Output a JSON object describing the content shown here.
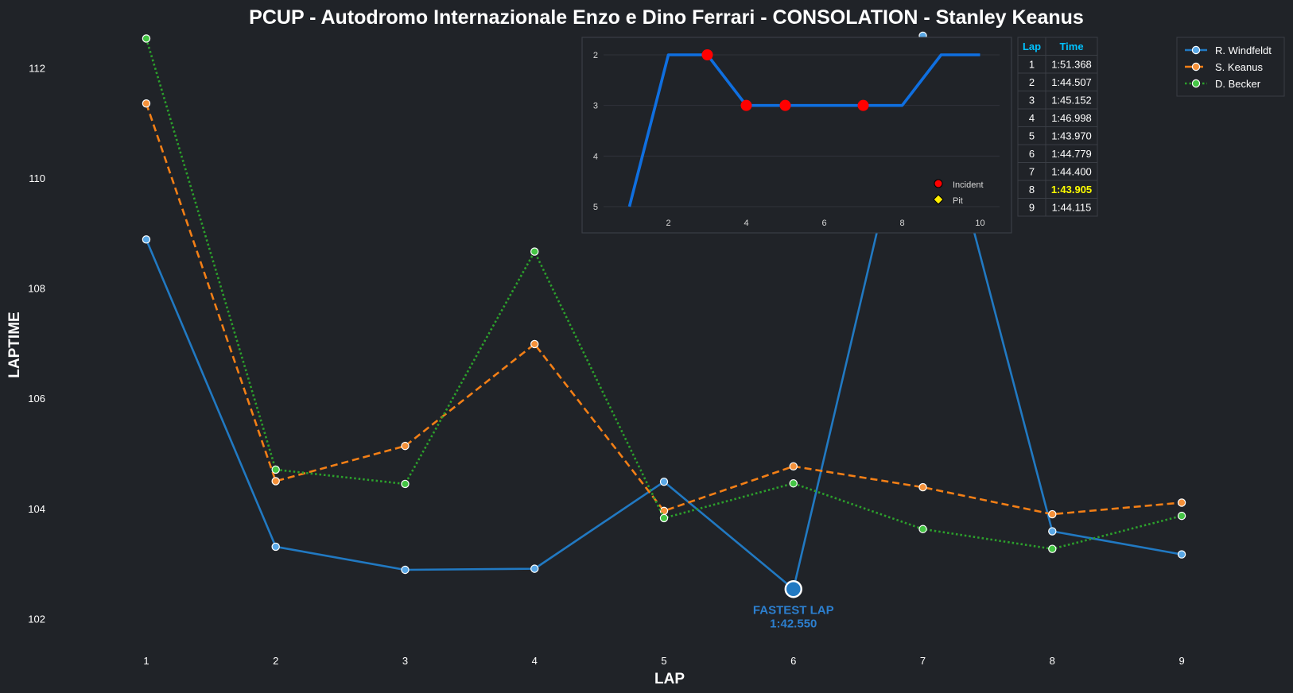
{
  "chart_data": [
    {
      "type": "line",
      "title": "PCUP - Autodromo Internazionale Enzo e Dino Ferrari - CONSOLATION - Stanley Keanus",
      "xlabel": "LAP",
      "ylabel": "LAPTIME",
      "x": [
        1,
        2,
        3,
        4,
        5,
        6,
        7,
        8,
        9
      ],
      "xlim": [
        0.3,
        9.7
      ],
      "ylim": [
        101.5,
        112.6
      ],
      "yticks": [
        102,
        104,
        106,
        108,
        110,
        112
      ],
      "grid": false,
      "legend_position": "top-right",
      "series": [
        {
          "name": "R. Windfeldt",
          "color": "#2179c2",
          "marker_fill": "#5aa8e6",
          "dash": "solid",
          "values": [
            108.9,
            103.32,
            102.9,
            102.92,
            104.5,
            102.55,
            112.6,
            103.6,
            103.18
          ]
        },
        {
          "name": "S. Keanus",
          "color": "#f37f16",
          "marker_fill": "#f5913a",
          "dash": "dashed",
          "values": [
            111.37,
            104.51,
            105.15,
            107.0,
            103.97,
            104.78,
            104.4,
            103.91,
            104.12
          ]
        },
        {
          "name": "D. Becker",
          "color": "#2ca02c",
          "marker_fill": "#45c545",
          "dash": "dotted",
          "values": [
            112.55,
            104.72,
            104.46,
            108.68,
            103.84,
            104.47,
            103.64,
            103.28,
            103.88
          ]
        }
      ],
      "annotation": {
        "x": 6,
        "y": 102.55,
        "line1": "FASTEST LAP",
        "line2": "1:42.550"
      }
    },
    {
      "type": "line",
      "title": "",
      "x": [
        1,
        2,
        3,
        4,
        5,
        6,
        7,
        8,
        9,
        10
      ],
      "xticks": [
        2,
        4,
        6,
        8,
        10
      ],
      "xlim": [
        0.5,
        10.5
      ],
      "yticks": [
        2,
        3,
        4,
        5
      ],
      "ylim": [
        5,
        2
      ],
      "y_inverted": true,
      "line_color": "#0f6fe0",
      "values": [
        5,
        2,
        2,
        3,
        3,
        3,
        3,
        3,
        2,
        2
      ],
      "incidents": [
        3,
        4,
        5,
        7
      ],
      "incident_color": "#ff0000",
      "pit_color": "#ffee00",
      "legend": [
        {
          "label": "Incident",
          "marker": "circle"
        },
        {
          "label": "Pit",
          "marker": "diamond"
        }
      ]
    },
    {
      "type": "table",
      "columns": [
        "Lap",
        "Time"
      ],
      "rows": [
        [
          "1",
          "1:51.368"
        ],
        [
          "2",
          "1:44.507"
        ],
        [
          "3",
          "1:45.152"
        ],
        [
          "4",
          "1:46.998"
        ],
        [
          "5",
          "1:43.970"
        ],
        [
          "6",
          "1:44.779"
        ],
        [
          "7",
          "1:44.400"
        ],
        [
          "8",
          "1:43.905"
        ],
        [
          "9",
          "1:44.115"
        ]
      ],
      "highlight_row": 7,
      "header_color": "#00c2ff",
      "highlight_color": "#ffff00"
    }
  ]
}
